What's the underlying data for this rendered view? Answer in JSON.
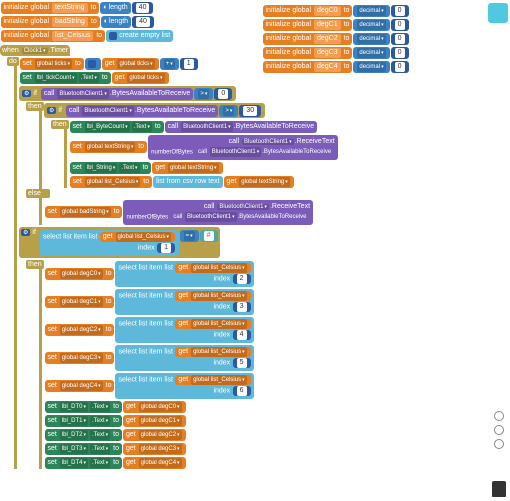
{
  "init": {
    "textString": {
      "label": "initialize global",
      "name": "textString",
      "to": "to",
      "len": "length",
      "val": "40"
    },
    "badString": {
      "label": "initialize global",
      "name": "badString",
      "to": "to",
      "len": "length",
      "val": "40"
    },
    "listCelsius": {
      "label": "initialize global",
      "name": "list_Celsius",
      "to": "to",
      "create": "create empty list"
    },
    "degC0": {
      "label": "initialize global",
      "name": "degC0",
      "to": "to",
      "dec": "decimal",
      "val": "0"
    },
    "degC1": {
      "label": "initialize global",
      "name": "degC1",
      "to": "to",
      "dec": "decimal",
      "val": "0"
    },
    "degC2": {
      "label": "initialize global",
      "name": "degC2",
      "to": "to",
      "dec": "decimal",
      "val": "0"
    },
    "degC3": {
      "label": "initialize global",
      "name": "degC3",
      "to": "to",
      "dec": "decimal",
      "val": "0"
    },
    "degC4": {
      "label": "initialize global",
      "name": "degC4",
      "to": "to",
      "dec": "decimal",
      "val": "0"
    }
  },
  "when": {
    "kw": "when",
    "comp": "Clock1",
    "evt": ".Timer",
    "do": "do"
  },
  "setTicks": {
    "set": "set",
    "var": "global ticks",
    "to": "to",
    "get": "get",
    "gvar": "global ticks",
    "plus": "+",
    "one": "1"
  },
  "tickCount": {
    "set": "set",
    "comp": "lbl_tickCount",
    "prop": ".Text",
    "to": "to",
    "get": "get",
    "var": "global ticks"
  },
  "if1": {
    "if": "if",
    "call": "call",
    "bt": "BluetoothClient1",
    "m": ".BytesAvailableToReceive",
    "gt": ">",
    "zero": "0"
  },
  "then": "then",
  "if2": {
    "if": "if",
    "call": "call",
    "bt": "BluetoothClient1",
    "m": ".BytesAvailableToReceive",
    "gt": ">",
    "thirty": "30"
  },
  "byteCount": {
    "set": "set",
    "comp": "lbl_ByteCount",
    "prop": ".Text",
    "to": "to",
    "call": "call",
    "bt": "BluetoothClient1",
    "m": ".BytesAvailableToReceive"
  },
  "recvText": {
    "set": "set",
    "var": "global textString",
    "to": "to",
    "call": "call",
    "bt": "BluetoothClient1",
    "m": ".ReceiveText",
    "nb": "numberOfBytes",
    "call2": "call",
    "bt2": "BluetoothClient1",
    "m2": ".BytesAvailableToReceive"
  },
  "lblString": {
    "set": "set",
    "comp": "lbl_String",
    "prop": ".Text",
    "to": "to",
    "get": "get",
    "var": "global textString"
  },
  "listFrom": {
    "set": "set",
    "var": "global list_Celsius",
    "to": "to",
    "csv": "list from csv row  text",
    "get": "get",
    "gvar": "global textString"
  },
  "else": "else",
  "badRecv": {
    "set": "set",
    "var": "global badString",
    "to": "to",
    "call": "call",
    "bt": "BluetoothClient1",
    "m": ".ReceiveText",
    "nb": "numberOfBytes",
    "call2": "call",
    "bt2": "BluetoothClient1",
    "m2": ".BytesAvailableToReceive"
  },
  "if3": {
    "if": "if",
    "sel": "select list item  list",
    "get": "get",
    "var": "global list_Celsius",
    "idx": "index",
    "one": "1",
    "eq": "=",
    "hash": "#"
  },
  "deg": [
    {
      "set": "set",
      "var": "global degC0",
      "to": "to",
      "sel": "select list item  list",
      "get": "get",
      "gvar": "global list_Celsius",
      "idx": "index",
      "n": "2"
    },
    {
      "set": "set",
      "var": "global degC1",
      "to": "to",
      "sel": "select list item  list",
      "get": "get",
      "gvar": "global list_Celsius",
      "idx": "index",
      "n": "3"
    },
    {
      "set": "set",
      "var": "global degC2",
      "to": "to",
      "sel": "select list item  list",
      "get": "get",
      "gvar": "global list_Celsius",
      "idx": "index",
      "n": "4"
    },
    {
      "set": "set",
      "var": "global degC3",
      "to": "to",
      "sel": "select list item  list",
      "get": "get",
      "gvar": "global list_Celsius",
      "idx": "index",
      "n": "5"
    },
    {
      "set": "set",
      "var": "global degC4",
      "to": "to",
      "sel": "select list item  list",
      "get": "get",
      "gvar": "global list_Celsius",
      "idx": "index",
      "n": "6"
    }
  ],
  "dt": [
    {
      "set": "set",
      "comp": "lbl_DT0",
      "prop": ".Text",
      "to": "to",
      "get": "get",
      "var": "global degC0"
    },
    {
      "set": "set",
      "comp": "lbl_DT1",
      "prop": ".Text",
      "to": "to",
      "get": "get",
      "var": "global degC1"
    },
    {
      "set": "set",
      "comp": "lbl_DT2",
      "prop": ".Text",
      "to": "to",
      "get": "get",
      "var": "global degC2"
    },
    {
      "set": "set",
      "comp": "lbl_DT3",
      "prop": ".Text",
      "to": "to",
      "get": "get",
      "var": "global degC3"
    },
    {
      "set": "set",
      "comp": "lbl_DT4",
      "prop": ".Text",
      "to": "to",
      "get": "get",
      "var": "global degC4"
    }
  ]
}
